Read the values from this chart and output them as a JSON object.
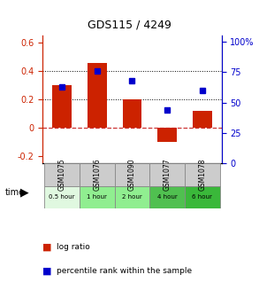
{
  "title": "GDS115 / 4249",
  "samples": [
    "GSM1075",
    "GSM1076",
    "GSM1090",
    "GSM1077",
    "GSM1078"
  ],
  "time_labels": [
    "0.5 hour",
    "1 hour",
    "2 hour",
    "4 hour",
    "6 hour"
  ],
  "time_colors": [
    "#e0f8e0",
    "#90ee90",
    "#90ee90",
    "#50c050",
    "#3ab83a"
  ],
  "log_ratios": [
    0.3,
    0.46,
    0.2,
    -0.1,
    0.12
  ],
  "percentile_ranks": [
    63,
    76,
    68,
    44,
    60
  ],
  "bar_color": "#cc2200",
  "dot_color": "#0000cc",
  "ylim_left": [
    -0.25,
    0.65
  ],
  "ylim_right": [
    0,
    105
  ],
  "yticks_left": [
    -0.2,
    0.0,
    0.2,
    0.4,
    0.6
  ],
  "yticks_left_labels": [
    "-0.2",
    "0",
    "0.2",
    "0.4",
    "0.6"
  ],
  "yticks_right": [
    0,
    25,
    50,
    75,
    100
  ],
  "yticks_right_labels": [
    "0",
    "25",
    "50",
    "75",
    "100%"
  ],
  "bar_width": 0.55,
  "bg_color": "#ffffff"
}
